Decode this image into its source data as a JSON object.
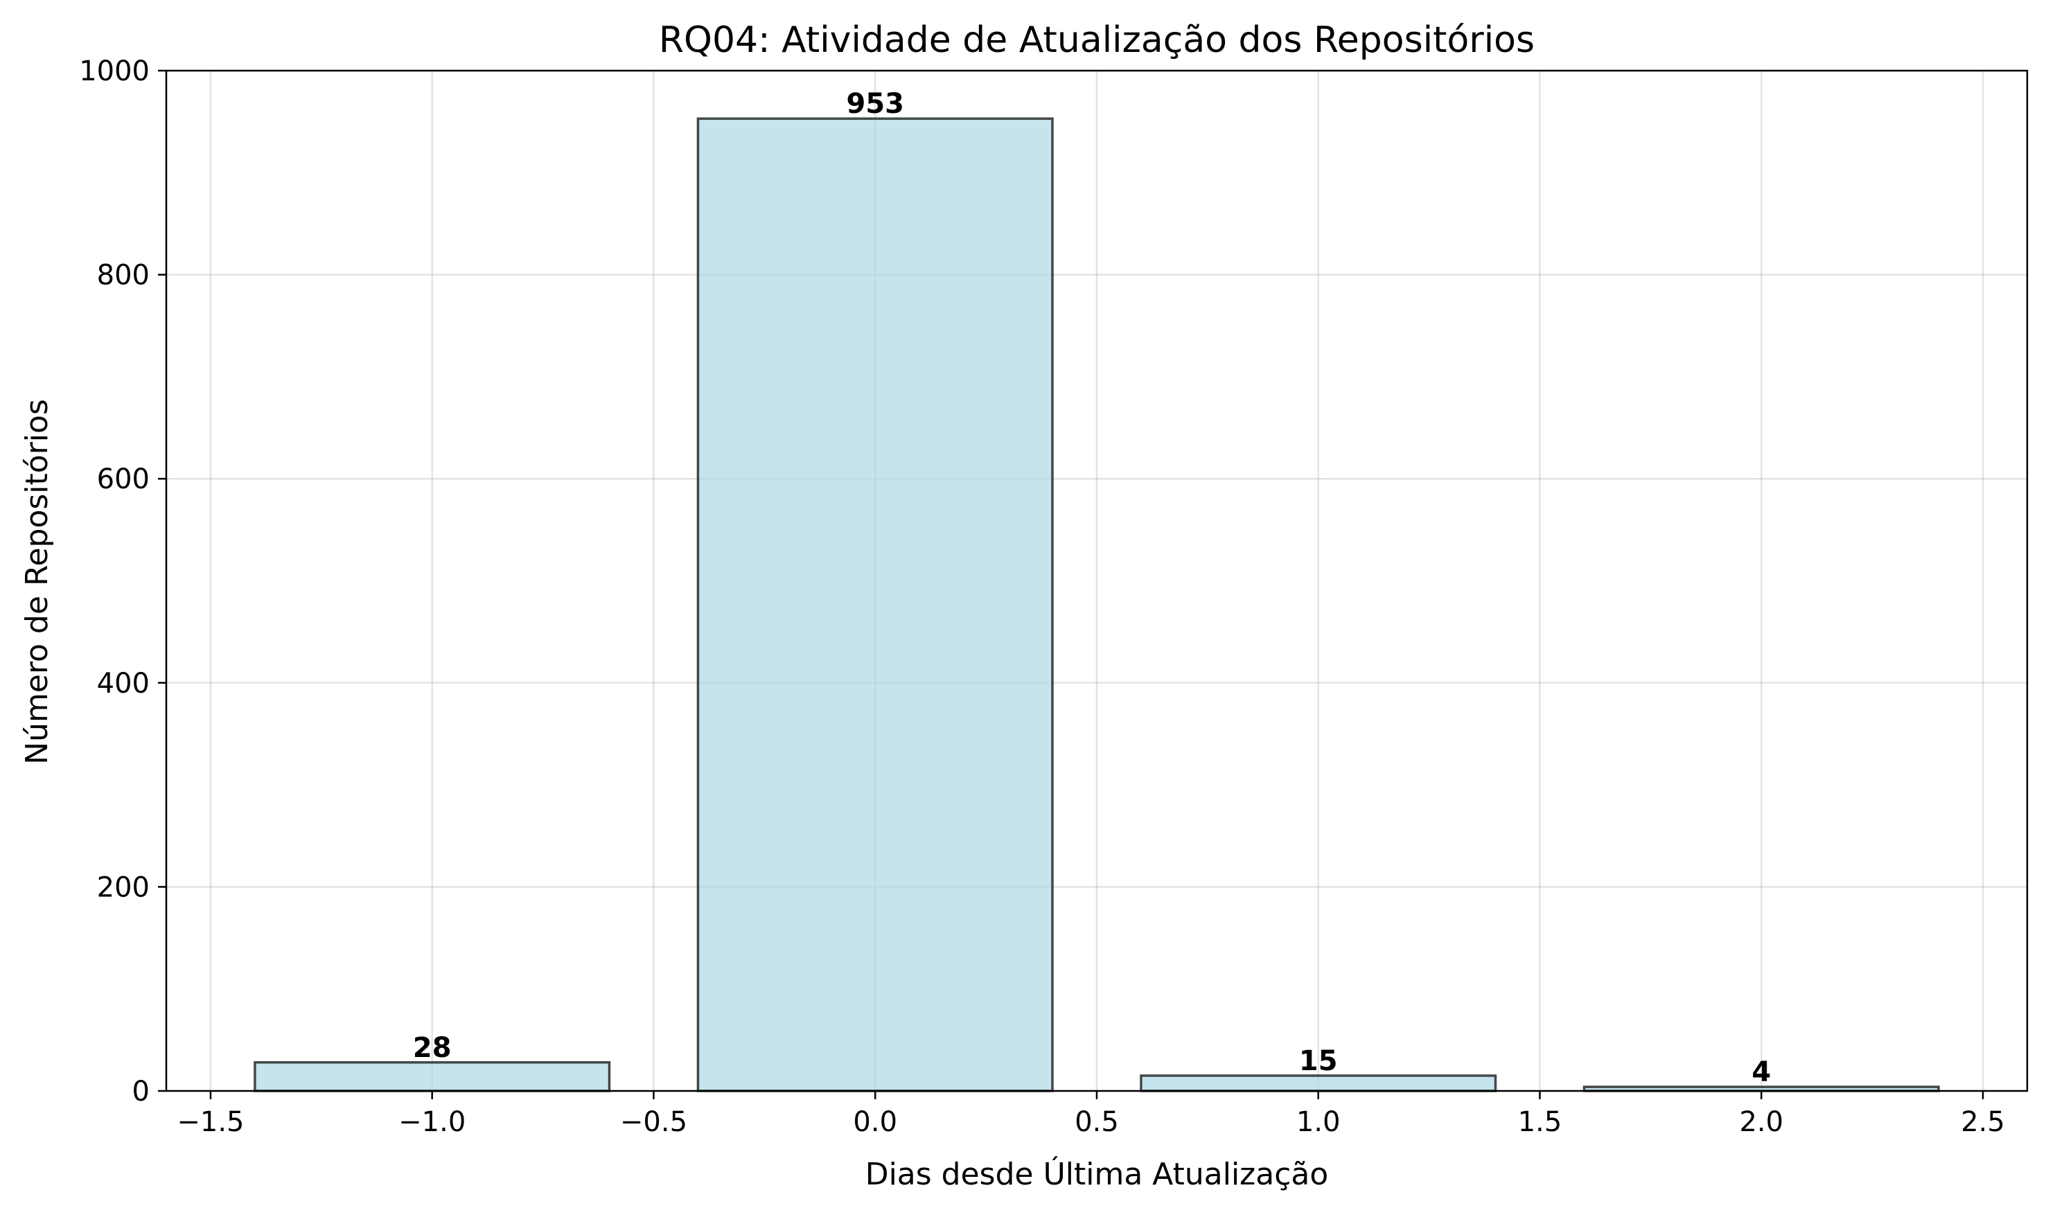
{
  "chart_data": {
    "type": "bar",
    "title": "RQ04: Atividade de Atualização dos Repositórios",
    "xlabel": "Dias desde Última Atualização",
    "ylabel": "Número de Repositórios",
    "x": [
      -1,
      0,
      1,
      2
    ],
    "values": [
      28,
      953,
      15,
      4
    ],
    "data_labels": [
      "28",
      "953",
      "15",
      "4"
    ],
    "bar_width": 0.8,
    "xlim": [
      -1.6,
      2.6
    ],
    "ylim": [
      0,
      1000
    ],
    "xticks": [
      -1.5,
      -1.0,
      -0.5,
      0.0,
      0.5,
      1.0,
      1.5,
      2.0,
      2.5
    ],
    "xtick_labels": [
      "−1.5",
      "−1.0",
      "−0.5",
      "0.0",
      "0.5",
      "1.0",
      "1.5",
      "2.0",
      "2.5"
    ],
    "yticks": [
      0,
      200,
      400,
      600,
      800,
      1000
    ],
    "ytick_labels": [
      "0",
      "200",
      "400",
      "600",
      "800",
      "1000"
    ],
    "grid": true,
    "colors": {
      "bar_fill": "#add8e6",
      "bar_edge": "#000000"
    }
  }
}
